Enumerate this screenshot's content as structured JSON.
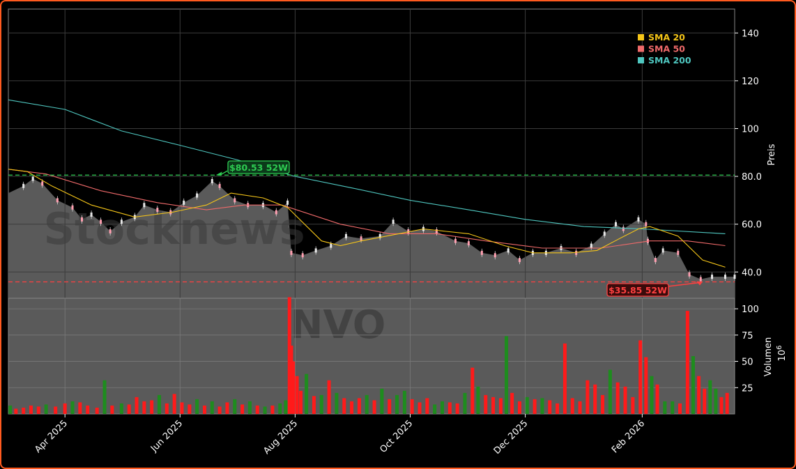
{
  "chart_data": {
    "type": "candlestick",
    "ticker": "NVO",
    "watermark": "Stocknews",
    "colors": {
      "background": "#000000",
      "area": "#5a5a5a",
      "grid": "#3c3c3c",
      "up": "#1e8c1e",
      "down": "#ff1a1a",
      "sma20": "#f5c518",
      "sma50": "#f06a6a",
      "sma200": "#4fc7c0",
      "high_line": "#2ecc52",
      "low_line": "#ff4040"
    },
    "x_range": [
      "2025-03-02",
      "2026-03-22"
    ],
    "x_ticks": [
      {
        "date": "2025-04-01",
        "label": "Apr 2025"
      },
      {
        "date": "2025-06-01",
        "label": "Jun 2025"
      },
      {
        "date": "2025-08-01",
        "label": "Aug 2025"
      },
      {
        "date": "2025-10-01",
        "label": "Oct 2025"
      },
      {
        "date": "2025-12-01",
        "label": "Dec 2025"
      },
      {
        "date": "2026-02-01",
        "label": "Feb 2026"
      }
    ],
    "price_panel": {
      "ylabel": "Preis",
      "ylim": [
        29,
        150
      ],
      "ticks": [
        {
          "v": 40,
          "label": "40.0"
        },
        {
          "v": 60,
          "label": "60.0"
        },
        {
          "v": 80,
          "label": "80.0"
        },
        {
          "v": 100,
          "label": "100"
        },
        {
          "v": 120,
          "label": "120"
        },
        {
          "v": 140,
          "label": "140"
        }
      ],
      "close_series": [
        [
          "2025-03-02",
          73
        ],
        [
          "2025-03-10",
          76
        ],
        [
          "2025-03-15",
          79
        ],
        [
          "2025-03-20",
          77
        ],
        [
          "2025-03-28",
          70
        ],
        [
          "2025-04-05",
          67
        ],
        [
          "2025-04-10",
          62
        ],
        [
          "2025-04-15",
          64
        ],
        [
          "2025-04-20",
          61
        ],
        [
          "2025-04-25",
          57
        ],
        [
          "2025-05-01",
          61
        ],
        [
          "2025-05-08",
          63
        ],
        [
          "2025-05-13",
          68
        ],
        [
          "2025-05-20",
          66
        ],
        [
          "2025-05-27",
          65
        ],
        [
          "2025-06-03",
          69
        ],
        [
          "2025-06-10",
          72
        ],
        [
          "2025-06-18",
          78
        ],
        [
          "2025-06-22",
          76
        ],
        [
          "2025-06-30",
          70
        ],
        [
          "2025-07-07",
          68
        ],
        [
          "2025-07-15",
          68
        ],
        [
          "2025-07-22",
          65
        ],
        [
          "2025-07-28",
          69
        ],
        [
          "2025-07-30",
          48
        ],
        [
          "2025-08-05",
          47
        ],
        [
          "2025-08-12",
          49
        ],
        [
          "2025-08-20",
          51
        ],
        [
          "2025-08-28",
          55
        ],
        [
          "2025-09-05",
          54
        ],
        [
          "2025-09-15",
          55
        ],
        [
          "2025-09-22",
          61
        ],
        [
          "2025-09-30",
          57
        ],
        [
          "2025-10-08",
          58
        ],
        [
          "2025-10-15",
          57
        ],
        [
          "2025-10-25",
          53
        ],
        [
          "2025-11-01",
          52
        ],
        [
          "2025-11-08",
          48
        ],
        [
          "2025-11-15",
          47
        ],
        [
          "2025-11-22",
          49
        ],
        [
          "2025-11-28",
          45
        ],
        [
          "2025-12-05",
          48
        ],
        [
          "2025-12-12",
          48
        ],
        [
          "2025-12-20",
          50
        ],
        [
          "2025-12-28",
          48
        ],
        [
          "2026-01-05",
          51
        ],
        [
          "2026-01-12",
          56
        ],
        [
          "2026-01-18",
          60
        ],
        [
          "2026-01-22",
          58
        ],
        [
          "2026-01-30",
          62
        ],
        [
          "2026-02-03",
          60
        ],
        [
          "2026-02-04",
          53
        ],
        [
          "2026-02-08",
          45
        ],
        [
          "2026-02-12",
          49
        ],
        [
          "2026-02-20",
          48
        ],
        [
          "2026-02-26",
          39
        ],
        [
          "2026-03-04",
          37
        ],
        [
          "2026-03-10",
          38
        ],
        [
          "2026-03-17",
          38
        ],
        [
          "2026-03-22",
          38
        ]
      ],
      "sma20": [
        [
          "2025-03-02",
          83
        ],
        [
          "2025-03-12",
          82
        ],
        [
          "2025-03-25",
          76
        ],
        [
          "2025-04-15",
          68
        ],
        [
          "2025-05-08",
          63
        ],
        [
          "2025-05-28",
          65
        ],
        [
          "2025-06-15",
          68
        ],
        [
          "2025-06-28",
          73
        ],
        [
          "2025-07-15",
          71
        ],
        [
          "2025-07-28",
          67
        ],
        [
          "2025-08-15",
          53
        ],
        [
          "2025-08-25",
          51
        ],
        [
          "2025-09-05",
          53
        ],
        [
          "2025-09-25",
          56
        ],
        [
          "2025-10-08",
          58
        ],
        [
          "2025-10-20",
          57
        ],
        [
          "2025-11-01",
          56
        ],
        [
          "2025-11-20",
          51
        ],
        [
          "2025-12-05",
          48
        ],
        [
          "2025-12-25",
          48
        ],
        [
          "2026-01-08",
          49
        ],
        [
          "2026-01-20",
          54
        ],
        [
          "2026-01-30",
          58
        ],
        [
          "2026-02-05",
          59
        ],
        [
          "2026-02-20",
          55
        ],
        [
          "2026-03-05",
          45
        ],
        [
          "2026-03-17",
          42
        ]
      ],
      "sma50": [
        [
          "2025-03-02",
          83
        ],
        [
          "2025-03-22",
          81
        ],
        [
          "2025-04-20",
          74
        ],
        [
          "2025-05-20",
          69
        ],
        [
          "2025-06-15",
          66
        ],
        [
          "2025-07-05",
          68
        ],
        [
          "2025-07-25",
          68
        ],
        [
          "2025-08-25",
          60
        ],
        [
          "2025-09-20",
          56
        ],
        [
          "2025-10-15",
          56
        ],
        [
          "2025-11-10",
          53
        ],
        [
          "2025-12-10",
          50
        ],
        [
          "2026-01-10",
          50
        ],
        [
          "2026-02-05",
          53
        ],
        [
          "2026-02-25",
          53
        ],
        [
          "2026-03-17",
          51
        ]
      ],
      "sma200": [
        [
          "2025-03-02",
          112
        ],
        [
          "2025-04-01",
          108
        ],
        [
          "2025-05-01",
          99
        ],
        [
          "2025-06-01",
          93
        ],
        [
          "2025-07-01",
          87
        ],
        [
          "2025-08-01",
          80
        ],
        [
          "2025-09-01",
          75
        ],
        [
          "2025-10-01",
          70
        ],
        [
          "2025-11-01",
          66
        ],
        [
          "2025-12-01",
          62
        ],
        [
          "2026-01-01",
          59
        ],
        [
          "2026-02-01",
          58
        ],
        [
          "2026-03-17",
          56
        ]
      ],
      "high_52w": {
        "value": 80.53,
        "date": "2025-06-20",
        "label": "$80.53 52W"
      },
      "low_52w": {
        "value": 35.85,
        "date": "2026-03-05",
        "label": "$35.85 52W"
      },
      "legend": [
        {
          "label": "SMA 20",
          "color": "#f5c518"
        },
        {
          "label": "SMA 50",
          "color": "#f06a6a"
        },
        {
          "label": "SMA 200",
          "color": "#4fc7c0"
        }
      ]
    },
    "volume_panel": {
      "ylabel": "Volumen",
      "unit": "10",
      "unit_exp": "6",
      "ylim": [
        0,
        110
      ],
      "ticks": [
        {
          "v": 25,
          "label": "25"
        },
        {
          "v": 50,
          "label": "50"
        },
        {
          "v": 75,
          "label": "75"
        },
        {
          "v": 100,
          "label": "100"
        }
      ],
      "bars": [
        [
          "2025-03-03",
          8,
          "u"
        ],
        [
          "2025-03-06",
          5,
          "d"
        ],
        [
          "2025-03-10",
          6,
          "d"
        ],
        [
          "2025-03-14",
          8,
          "d"
        ],
        [
          "2025-03-18",
          7,
          "d"
        ],
        [
          "2025-03-22",
          9,
          "u"
        ],
        [
          "2025-03-27",
          7,
          "d"
        ],
        [
          "2025-04-01",
          10,
          "d"
        ],
        [
          "2025-04-05",
          12,
          "u"
        ],
        [
          "2025-04-09",
          11,
          "d"
        ],
        [
          "2025-04-13",
          8,
          "d"
        ],
        [
          "2025-04-18",
          6,
          "d"
        ],
        [
          "2025-04-22",
          32,
          "u"
        ],
        [
          "2025-04-26",
          8,
          "d"
        ],
        [
          "2025-05-01",
          10,
          "u"
        ],
        [
          "2025-05-05",
          9,
          "d"
        ],
        [
          "2025-05-09",
          16,
          "d"
        ],
        [
          "2025-05-13",
          12,
          "d"
        ],
        [
          "2025-05-17",
          13,
          "d"
        ],
        [
          "2025-05-21",
          18,
          "u"
        ],
        [
          "2025-05-25",
          10,
          "d"
        ],
        [
          "2025-05-29",
          19,
          "d"
        ],
        [
          "2025-06-02",
          11,
          "d"
        ],
        [
          "2025-06-06",
          9,
          "d"
        ],
        [
          "2025-06-10",
          14,
          "u"
        ],
        [
          "2025-06-14",
          8,
          "d"
        ],
        [
          "2025-06-18",
          12,
          "u"
        ],
        [
          "2025-06-22",
          7,
          "d"
        ],
        [
          "2025-06-26",
          11,
          "d"
        ],
        [
          "2025-06-30",
          14,
          "u"
        ],
        [
          "2025-07-04",
          9,
          "d"
        ],
        [
          "2025-07-08",
          12,
          "u"
        ],
        [
          "2025-07-12",
          8,
          "d"
        ],
        [
          "2025-07-16",
          7,
          "u"
        ],
        [
          "2025-07-20",
          8,
          "d"
        ],
        [
          "2025-07-24",
          10,
          "u"
        ],
        [
          "2025-07-27",
          13,
          "u"
        ],
        [
          "2025-07-29",
          111,
          "d"
        ],
        [
          "2025-07-30",
          65,
          "d"
        ],
        [
          "2025-07-31",
          50,
          "d"
        ],
        [
          "2025-08-02",
          36,
          "d"
        ],
        [
          "2025-08-04",
          22,
          "d"
        ],
        [
          "2025-08-07",
          38,
          "u"
        ],
        [
          "2025-08-11",
          17,
          "d"
        ],
        [
          "2025-08-15",
          18,
          "u"
        ],
        [
          "2025-08-19",
          32,
          "d"
        ],
        [
          "2025-08-23",
          20,
          "u"
        ],
        [
          "2025-08-27",
          15,
          "d"
        ],
        [
          "2025-08-31",
          12,
          "d"
        ],
        [
          "2025-09-04",
          15,
          "d"
        ],
        [
          "2025-09-08",
          18,
          "u"
        ],
        [
          "2025-09-12",
          13,
          "d"
        ],
        [
          "2025-09-16",
          24,
          "u"
        ],
        [
          "2025-09-20",
          14,
          "d"
        ],
        [
          "2025-09-24",
          18,
          "u"
        ],
        [
          "2025-09-28",
          22,
          "u"
        ],
        [
          "2025-10-02",
          14,
          "d"
        ],
        [
          "2025-10-06",
          11,
          "d"
        ],
        [
          "2025-10-10",
          15,
          "d"
        ],
        [
          "2025-10-14",
          9,
          "u"
        ],
        [
          "2025-10-18",
          12,
          "u"
        ],
        [
          "2025-10-22",
          11,
          "d"
        ],
        [
          "2025-10-26",
          10,
          "d"
        ],
        [
          "2025-10-30",
          20,
          "u"
        ],
        [
          "2025-11-03",
          44,
          "d"
        ],
        [
          "2025-11-06",
          26,
          "u"
        ],
        [
          "2025-11-10",
          18,
          "d"
        ],
        [
          "2025-11-14",
          16,
          "d"
        ],
        [
          "2025-11-18",
          15,
          "d"
        ],
        [
          "2025-11-21",
          74,
          "u"
        ],
        [
          "2025-11-24",
          20,
          "d"
        ],
        [
          "2025-11-28",
          12,
          "d"
        ],
        [
          "2025-12-02",
          16,
          "u"
        ],
        [
          "2025-12-06",
          14,
          "d"
        ],
        [
          "2025-12-10",
          15,
          "u"
        ],
        [
          "2025-12-14",
          13,
          "d"
        ],
        [
          "2025-12-18",
          10,
          "d"
        ],
        [
          "2025-12-22",
          67,
          "d"
        ],
        [
          "2025-12-26",
          15,
          "d"
        ],
        [
          "2025-12-30",
          12,
          "d"
        ],
        [
          "2026-01-03",
          32,
          "d"
        ],
        [
          "2026-01-07",
          28,
          "d"
        ],
        [
          "2026-01-11",
          18,
          "d"
        ],
        [
          "2026-01-15",
          42,
          "u"
        ],
        [
          "2026-01-19",
          30,
          "d"
        ],
        [
          "2026-01-23",
          26,
          "d"
        ],
        [
          "2026-01-27",
          16,
          "d"
        ],
        [
          "2026-01-31",
          70,
          "d"
        ],
        [
          "2026-02-03",
          54,
          "d"
        ],
        [
          "2026-02-06",
          36,
          "u"
        ],
        [
          "2026-02-09",
          28,
          "d"
        ],
        [
          "2026-02-13",
          12,
          "u"
        ],
        [
          "2026-02-17",
          12,
          "u"
        ],
        [
          "2026-02-21",
          10,
          "d"
        ],
        [
          "2026-02-25",
          98,
          "d"
        ],
        [
          "2026-02-28",
          55,
          "u"
        ],
        [
          "2026-03-03",
          36,
          "d"
        ],
        [
          "2026-03-06",
          24,
          "d"
        ],
        [
          "2026-03-09",
          32,
          "u"
        ],
        [
          "2026-03-12",
          24,
          "u"
        ],
        [
          "2026-03-15",
          16,
          "d"
        ],
        [
          "2026-03-18",
          20,
          "d"
        ]
      ]
    }
  }
}
